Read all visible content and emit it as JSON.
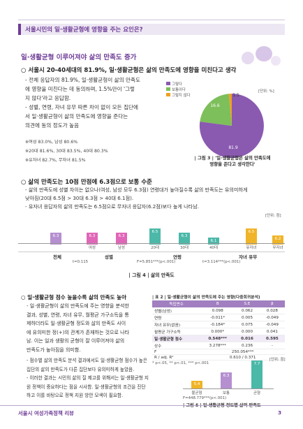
{
  "header": {
    "title": "서울시민의 일·생활균형에 영향을 주는 요인은?"
  },
  "section1": {
    "title": "일·생활균형 이루어져야 삶의 만족도 증가",
    "point1": "서울시 20-40세대의 81.9%, 일·생활균형은 삶의 만족도에 영향을 미친다고 생각",
    "dash1": [
      "- 전체 응답자의 81.9%, 일·생활균형이 삶의 만족도",
      "  에 영향을 미친다는 데 동의하며, 1.5%만이 '그렇",
      "  지 않다'라고 응답함.",
      "- 성별, 연령, 자녀 유무 따른 차이 없이 모든 집단에",
      "  서 일·생활균형이 삶의 만족도에 영향을 준다는",
      "  의견에 동의 정도가 높음"
    ],
    "notes": [
      "※여성 83.0%, 남성 80.6%",
      "※20대 81.6%, 30대 83.5%, 40대 80.3%",
      "※유자녀 82.7%, 무자녀 81.5%"
    ]
  },
  "pie": {
    "legend": [
      "그렇다",
      "보통이다",
      "그렇지 않다"
    ],
    "unit": "[단위: %]",
    "labels": [
      "81.9",
      "16.6",
      "1.5"
    ],
    "colors": [
      "#8a5ab0",
      "#7dbf5a",
      "#f0a020"
    ],
    "caption": [
      "| 그림 3 | '일·생활균형은 삶의 만족도에",
      "영향을 준다고 생각한다'"
    ]
  },
  "chart_data": [
    {
      "type": "bar",
      "title": "",
      "unit": "[단위: 점]",
      "categories": [
        "전체",
        "여성",
        "남성",
        "20대",
        "30대",
        "40대",
        "유자녀",
        "무자녀"
      ],
      "values": [
        6.3,
        6.3,
        6.3,
        6.5,
        6.3,
        6.1,
        6.5,
        6.2
      ],
      "groups": [
        "전체",
        "성별",
        "연령",
        "자녀 유무"
      ],
      "stats": [
        "t=0.115",
        "F=5.851***(p<.001)",
        "t=3.114***(p<.001)"
      ],
      "caption": "| 그림 4 | 삶의 만족도"
    },
    {
      "type": "bar",
      "unit": "[단위: 점]",
      "categories": [
        "불균형",
        "보통",
        "균형"
      ],
      "values": [
        5.4,
        6.3,
        7.7
      ],
      "stat": "F=448.779***(p<.001)",
      "caption": "| 그림 5 | 일·생활균형 정도별 삶의 만족도"
    }
  ],
  "section2": {
    "point2": "삶의 만족도는 10점 만점에 6.3점으로 보통 수준",
    "dash2": [
      "- 삶의 만족도에 성별 차이는 없으나(여성, 남성 모두 6.3점) 연령대가 높아질수록 삶의 만족도는 유의미하게",
      "  낮아짐(20대 6.5점 > 30대 6.3점 > 40대 6.1점).",
      "- 유자녀 응답자의 삶의 만족도는 6.5점으로 무자녀 응답자(6.2점)보다 높게 나타남."
    ]
  },
  "section3": {
    "point3": "일·생활균형 점수 높을수록 삶의 만족도 높아",
    "dash3": [
      "- 일·생활균형이 삶의 만족도에 주는 영향을 분석한",
      "  결과, 성별, 연령, 자녀 유무, 월평균 가구소득을 통",
      "  제하더라도 일·생활균형 정도와 삶의 만족도 사이",
      "  에 유의미한 정(+)의 관계가 존재하는 것으로 나타",
      "  남. 이는 일과 생활의 균형이 잘 이루어져야 삶의",
      "  만족도가 높아짐을 의미함."
    ],
    "dash4": [
      "- 점수별 삶의 만족도 분석 결과에서도 일·생활균형 점수가 높은",
      "  집단의 삶의 만족도가 다른 집단보다 유의미하게 높았음.",
      "- 이러한 결과는 시민의 삶의 질 제고를 위해서는 일·생활균형 지",
      "  원 정책이 중요하다는 점을 시사함. 일·생활균형의 조건을 진단",
      "  하고 이를 바탕으로 정책 지원 방안 모색이 필요함."
    ]
  },
  "table": {
    "title": "| 표 2 | 일·생활균형이 삶의 만족도에 주는 영향(다중회귀분석)",
    "headers": [
      "독립변수",
      "B",
      "S.E",
      "β"
    ],
    "rows": [
      [
        "성별(남성)",
        "0.098",
        "0.062",
        "0.028"
      ],
      [
        "연령",
        "-0.011*",
        "0.005",
        "-0.049"
      ],
      [
        "자녀 유무(없음)",
        "-0.184*",
        "0.075",
        "-0.049"
      ],
      [
        "월평균 가구소득",
        "0.000*",
        "0.000",
        "0.041"
      ],
      [
        "일·생활균형 점수",
        "0.548***",
        "0.016",
        "0.595"
      ],
      [
        "상수",
        "3.278***",
        "0.236",
        "-"
      ],
      [
        "F",
        "250.054***",
        "",
        ""
      ],
      [
        "R / adj. R²",
        "0.610 / 0.371",
        "",
        ""
      ]
    ],
    "footnote": "* p<.05, ** p<.01, *** p<.001"
  },
  "footer": {
    "left": "서울시 여성가족정책 리뷰",
    "page": "3"
  },
  "colors": {
    "purple": "#6e3c96",
    "lavender": "#b58fd0",
    "pink": "#e066b8",
    "teal": "#4bb8a8",
    "green": "#7dbf5a",
    "orange": "#f0b428"
  }
}
